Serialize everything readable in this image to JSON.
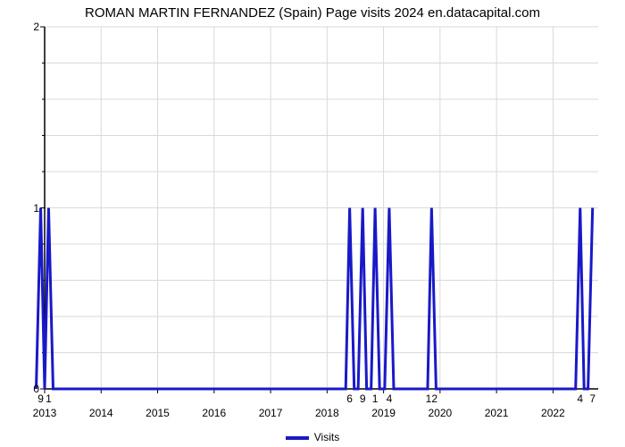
{
  "chart": {
    "type": "line",
    "title": "ROMAN MARTIN FERNANDEZ (Spain) Page visits 2024 en.datacapital.com",
    "title_fontsize": 15,
    "background_color": "#ffffff",
    "grid_color": "#d9d9d9",
    "axis_color": "#000000",
    "axis_fontsize": 12,
    "yaxis": {
      "min": 0,
      "max": 2,
      "ticks": [
        0,
        1,
        2
      ],
      "minor_ticks_between": 4
    },
    "xaxis": {
      "year_start": 2013,
      "year_end": 2022.8,
      "year_ticks": [
        2013,
        2014,
        2015,
        2016,
        2017,
        2018,
        2019,
        2020,
        2021,
        2022
      ],
      "value_labels": [
        {
          "x": 2012.93,
          "label": "9"
        },
        {
          "x": 2013.07,
          "label": "1"
        },
        {
          "x": 2018.4,
          "label": "6"
        },
        {
          "x": 2018.63,
          "label": "9"
        },
        {
          "x": 2018.85,
          "label": "1"
        },
        {
          "x": 2019.1,
          "label": "4"
        },
        {
          "x": 2019.85,
          "label": "12"
        },
        {
          "x": 2022.48,
          "label": "4"
        },
        {
          "x": 2022.7,
          "label": "7"
        }
      ]
    },
    "series": {
      "name": "Visits",
      "color": "#1919c8",
      "line_width": 3,
      "points": [
        {
          "x": 2012.85,
          "y": 0
        },
        {
          "x": 2012.93,
          "y": 1
        },
        {
          "x": 2013.0,
          "y": 0
        },
        {
          "x": 2013.07,
          "y": 1
        },
        {
          "x": 2013.15,
          "y": 0
        },
        {
          "x": 2018.33,
          "y": 0
        },
        {
          "x": 2018.4,
          "y": 1
        },
        {
          "x": 2018.48,
          "y": 0
        },
        {
          "x": 2018.55,
          "y": 0
        },
        {
          "x": 2018.63,
          "y": 1
        },
        {
          "x": 2018.7,
          "y": 0
        },
        {
          "x": 2018.78,
          "y": 0
        },
        {
          "x": 2018.85,
          "y": 1
        },
        {
          "x": 2018.93,
          "y": 0
        },
        {
          "x": 2019.02,
          "y": 0
        },
        {
          "x": 2019.1,
          "y": 1
        },
        {
          "x": 2019.18,
          "y": 0
        },
        {
          "x": 2019.78,
          "y": 0
        },
        {
          "x": 2019.85,
          "y": 1
        },
        {
          "x": 2019.93,
          "y": 0
        },
        {
          "x": 2022.4,
          "y": 0
        },
        {
          "x": 2022.48,
          "y": 1
        },
        {
          "x": 2022.55,
          "y": 0
        },
        {
          "x": 2022.62,
          "y": 0
        },
        {
          "x": 2022.7,
          "y": 1
        }
      ]
    },
    "legend": {
      "label": "Visits",
      "swatch_color": "#1919c8"
    }
  }
}
